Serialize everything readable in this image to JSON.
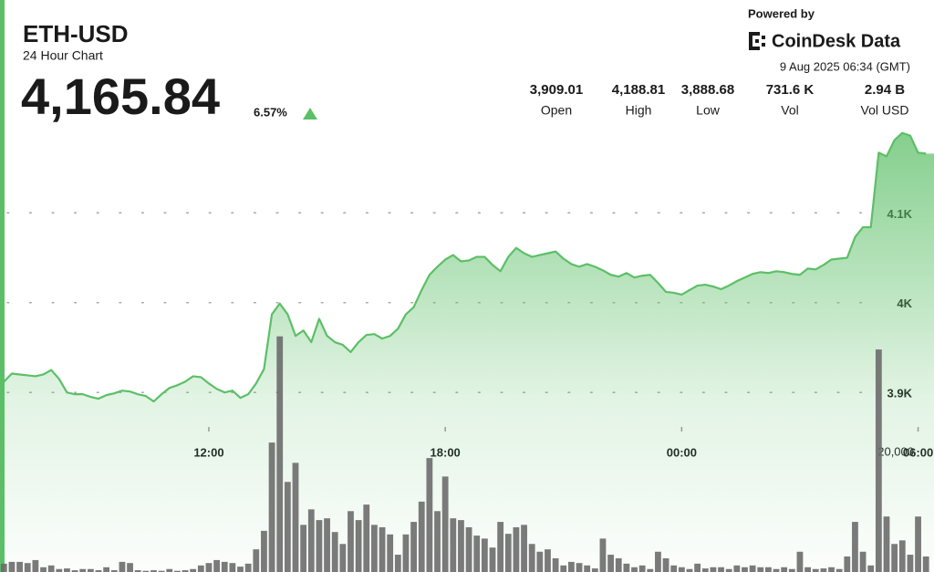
{
  "header": {
    "symbol": "ETH-USD",
    "subtitle": "24 Hour Chart",
    "price": "4,165.84",
    "change": "6.57%",
    "powered_by": "Powered by",
    "brand": "CoinDesk Data",
    "timestamp": "9 Aug 2025 06:34 (GMT)"
  },
  "stats": [
    {
      "value": "3,909.01",
      "label": "Open"
    },
    {
      "value": "4,188.81",
      "label": "High"
    },
    {
      "value": "3,888.68",
      "label": "Low"
    },
    {
      "value": "731.6 K",
      "label": "Vol"
    },
    {
      "value": "2.94 B",
      "label": "Vol USD"
    }
  ],
  "chart_data": {
    "type": "line",
    "categories": [
      null,
      null,
      null,
      null,
      null,
      null,
      null,
      null,
      null,
      null,
      null,
      null,
      null,
      null,
      null,
      null,
      null,
      null,
      null,
      null,
      null,
      null,
      null,
      null,
      null,
      null,
      "12:00",
      null,
      null,
      null,
      null,
      null,
      null,
      null,
      null,
      null,
      null,
      null,
      null,
      null,
      null,
      null,
      null,
      null,
      null,
      null,
      null,
      null,
      null,
      null,
      null,
      null,
      null,
      null,
      null,
      null,
      "18:00",
      null,
      null,
      null,
      null,
      null,
      null,
      null,
      null,
      null,
      null,
      null,
      null,
      null,
      null,
      null,
      null,
      null,
      null,
      null,
      null,
      null,
      null,
      null,
      null,
      null,
      null,
      null,
      null,
      null,
      "00:00",
      null,
      null,
      null,
      null,
      null,
      null,
      null,
      null,
      null,
      null,
      null,
      null,
      null,
      null,
      null,
      null,
      null,
      null,
      null,
      null,
      null,
      null,
      null,
      null,
      null,
      null,
      null,
      null,
      null,
      "06:00",
      null
    ],
    "series": [
      {
        "type": "line",
        "color": "#5cbf67",
        "values": [
          3912,
          3921,
          3920,
          3919,
          3918,
          3920,
          3925,
          3915,
          3900,
          3898,
          3898,
          3895,
          3893,
          3897,
          3899,
          3902,
          3901,
          3898,
          3896,
          3890,
          3898,
          3905,
          3908,
          3912,
          3918,
          3917,
          3910,
          3904,
          3900,
          3902,
          3894,
          3898,
          3910,
          3926,
          3987,
          3999,
          3987,
          3963,
          3969,
          3956,
          3982,
          3963,
          3956,
          3953,
          3945,
          3956,
          3964,
          3965,
          3960,
          3963,
          3971,
          3987,
          3995,
          4014,
          4031,
          4040,
          4048,
          4053,
          4046,
          4047,
          4051,
          4051,
          4042,
          4035,
          4051,
          4061,
          4055,
          4051,
          4053,
          4055,
          4057,
          4049,
          4043,
          4040,
          4043,
          4040,
          4036,
          4031,
          4029,
          4033,
          4028,
          4030,
          4031,
          4022,
          4012,
          4011,
          4009,
          4014,
          4019,
          4020,
          4018,
          4015,
          4019,
          4024,
          4028,
          4032,
          4034,
          4033,
          4035,
          4034,
          4032,
          4031,
          4038,
          4037,
          4042,
          4048,
          4049,
          4050,
          4073,
          4084,
          4084,
          4167,
          4163,
          4181,
          4189,
          4186,
          4167,
          4166
        ]
      },
      {
        "type": "bar",
        "color": "#6b6b6b",
        "axis": "y2",
        "values": [
          1400,
          1700,
          1700,
          1500,
          2000,
          800,
          1100,
          500,
          600,
          300,
          500,
          500,
          300,
          800,
          300,
          1700,
          1500,
          300,
          200,
          300,
          200,
          500,
          200,
          300,
          500,
          1100,
          1500,
          2000,
          1700,
          1500,
          900,
          1400,
          3800,
          6900,
          21700,
          39500,
          15100,
          18300,
          7900,
          10500,
          8700,
          9000,
          6700,
          4700,
          10200,
          8700,
          11300,
          7900,
          7500,
          6300,
          2900,
          6300,
          8400,
          11800,
          19100,
          10200,
          16000,
          9000,
          8700,
          7500,
          6100,
          5600,
          4100,
          8400,
          6400,
          7500,
          7900,
          4700,
          3400,
          3800,
          2300,
          1100,
          1700,
          1500,
          1100,
          600,
          5600,
          2900,
          2300,
          1400,
          800,
          1100,
          500,
          3400,
          2300,
          1100,
          800,
          500,
          1400,
          600,
          800,
          800,
          500,
          1100,
          800,
          1100,
          800,
          800,
          500,
          800,
          500,
          3400,
          800,
          500,
          600,
          800,
          500,
          2600,
          8400,
          3400,
          1100,
          37300,
          9300,
          4700,
          5300,
          2900,
          9300,
          2600
        ]
      }
    ],
    "ylim": [
      3700,
      4205
    ],
    "yticks": [
      {
        "value": 3900,
        "label": "3.9K"
      },
      {
        "value": 4000,
        "label": "4K"
      },
      {
        "value": 4100,
        "label": "4.1K"
      }
    ],
    "y2lim": [
      0,
      76000
    ],
    "y2ticks": [
      {
        "value": 20000,
        "label": "20,000"
      }
    ],
    "grid": true
  }
}
